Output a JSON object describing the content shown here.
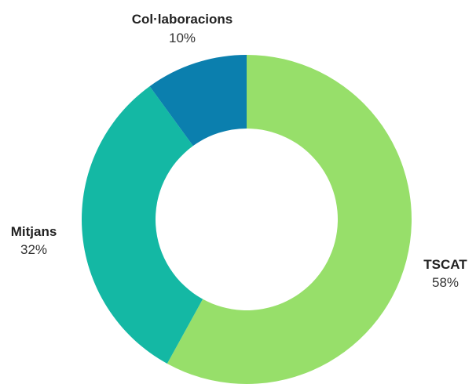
{
  "chart_data": {
    "type": "pie",
    "variant": "donut",
    "categories": [
      "TSCAT",
      "Mitjans",
      "Col·laboracions"
    ],
    "values": [
      58,
      32,
      10
    ],
    "percent_labels": [
      "58%",
      "32%",
      "10%"
    ],
    "colors": [
      "#97df6a",
      "#14b8a4",
      "#0b7fae"
    ],
    "start_angle_deg": 0,
    "direction": "clockwise",
    "title": "",
    "legend": "none"
  }
}
